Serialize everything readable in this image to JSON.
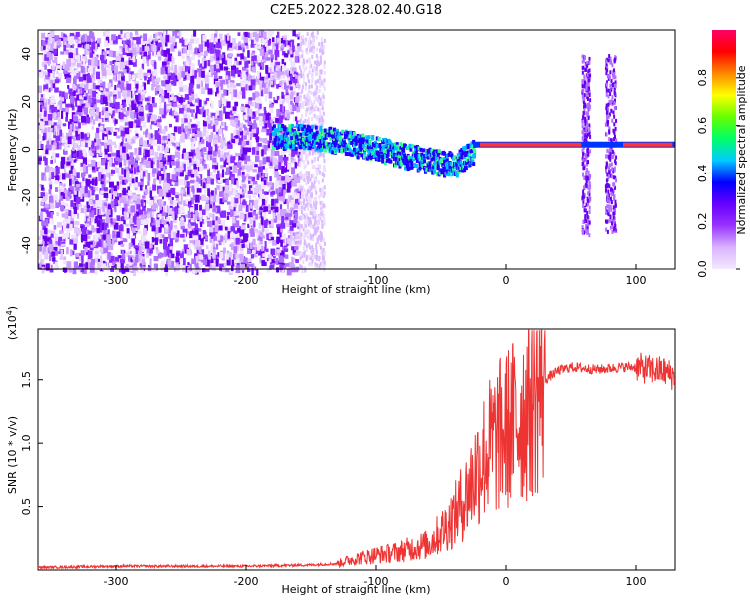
{
  "figure": {
    "title": "C2E5.2022.328.02.40.G18"
  },
  "chart_data": [
    {
      "type": "heatmap",
      "title": "C2E5.2022.328.02.40.G18",
      "xlabel": "Height of straight line (km)",
      "ylabel": "Frequency (Hz)",
      "xlim": [
        -360,
        130
      ],
      "ylim": [
        -50,
        50
      ],
      "xticks": [
        -300,
        -200,
        -100,
        0,
        100
      ],
      "yticks": [
        -40,
        -20,
        0,
        20,
        40
      ],
      "colorbar": {
        "label": "Normalized spectral amplitude",
        "range": [
          0.0,
          1.0
        ],
        "ticks": [
          0.0,
          0.2,
          0.4,
          0.6,
          0.8
        ],
        "colors": [
          "#f4e8ff",
          "#d9b3ff",
          "#9933ff",
          "#6600ff",
          "#0000ff",
          "#00ccff",
          "#00ff66",
          "#66ff00",
          "#ffff00",
          "#ff8800",
          "#ff0000",
          "#ff0066"
        ]
      },
      "ridge": {
        "x": [
          -180,
          -160,
          -140,
          -120,
          -100,
          -80,
          -60,
          -40,
          -30,
          -20,
          0,
          20,
          40,
          60,
          80,
          100,
          120,
          130
        ],
        "y": [
          6,
          6,
          5,
          3,
          1,
          -2,
          -4,
          -6,
          -2,
          1,
          2,
          2,
          2,
          2,
          2,
          2,
          2,
          2
        ]
      },
      "grid": false,
      "legend": "none"
    },
    {
      "type": "line",
      "xlabel": "Height of straight line (km)",
      "ylabel": "SNR (10 * v/v)",
      "yscale_label": "(x10",
      "yscale_exp": "4",
      "yscale_close": ")",
      "xlim": [
        -360,
        130
      ],
      "ylim": [
        0,
        1.9
      ],
      "xticks": [
        -300,
        -200,
        -100,
        0,
        100
      ],
      "yticks": [
        0.5,
        1.0,
        1.5
      ],
      "series": [
        {
          "color": "#ee3333",
          "x": [
            -360,
            -300,
            -250,
            -200,
            -150,
            -130,
            -120,
            -110,
            -100,
            -90,
            -80,
            -70,
            -60,
            -50,
            -40,
            -30,
            -20,
            -10,
            0,
            10,
            20,
            30,
            40,
            50,
            60,
            70,
            80,
            90,
            100,
            110,
            120,
            125,
            130
          ],
          "values": [
            0.02,
            0.03,
            0.03,
            0.03,
            0.04,
            0.05,
            0.08,
            0.1,
            0.12,
            0.13,
            0.15,
            0.18,
            0.2,
            0.3,
            0.42,
            0.6,
            0.85,
            1.0,
            1.1,
            1.2,
            1.35,
            1.5,
            1.57,
            1.6,
            1.59,
            1.58,
            1.59,
            1.6,
            1.6,
            1.58,
            1.57,
            1.55,
            1.52
          ]
        }
      ],
      "grid": false,
      "legend": "none"
    }
  ]
}
